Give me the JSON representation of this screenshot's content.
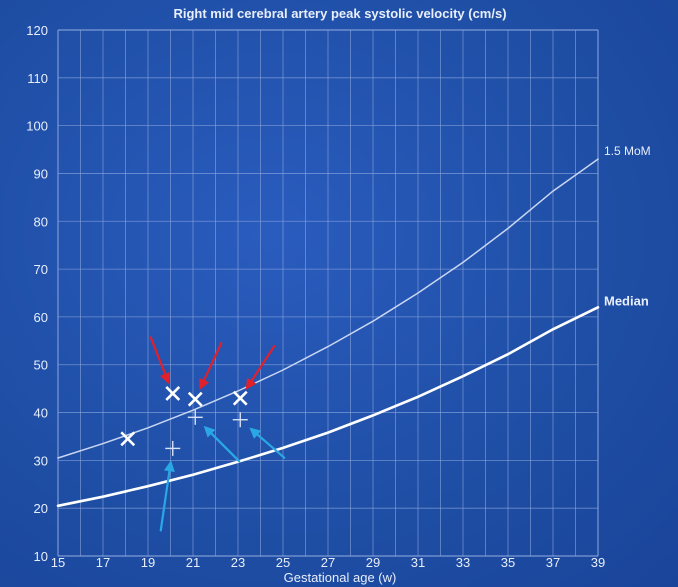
{
  "chart_data": {
    "type": "line",
    "title": "Right mid cerebral artery peak systolic velocity (cm/s)",
    "xlabel": "Gestational age (w)",
    "ylabel": "",
    "xlim": [
      15,
      39
    ],
    "ylim": [
      10,
      120
    ],
    "x_ticks": [
      15,
      17,
      19,
      21,
      23,
      25,
      27,
      29,
      31,
      33,
      35,
      37,
      39
    ],
    "y_ticks": [
      10,
      20,
      30,
      40,
      50,
      60,
      70,
      80,
      90,
      100,
      110,
      120
    ],
    "grid": true,
    "series": [
      {
        "name": "1.5 MoM",
        "style": "thin line",
        "color": "#c9d6f2",
        "x": [
          15,
          17,
          19,
          21,
          23,
          25,
          27,
          29,
          31,
          33,
          35,
          37,
          39
        ],
        "y": [
          30.5,
          33.5,
          36.8,
          40.5,
          44.5,
          48.9,
          53.8,
          59.1,
          65,
          71.4,
          78.5,
          86.3,
          93
        ]
      },
      {
        "name": "Median",
        "style": "thick line",
        "color": "#ffffff",
        "x": [
          15,
          17,
          19,
          21,
          23,
          25,
          27,
          29,
          31,
          33,
          35,
          37,
          39
        ],
        "y": [
          20.5,
          22.4,
          24.6,
          27,
          29.7,
          32.6,
          35.8,
          39.4,
          43.3,
          47.6,
          52.2,
          57.4,
          62
        ]
      }
    ],
    "points": [
      {
        "marker": "x",
        "x": 18.1,
        "y": 34.5
      },
      {
        "marker": "x",
        "x": 20.1,
        "y": 44
      },
      {
        "marker": "x",
        "x": 21.1,
        "y": 42.8
      },
      {
        "marker": "x",
        "x": 23.1,
        "y": 43
      },
      {
        "marker": "+",
        "x": 20.1,
        "y": 32.5
      },
      {
        "marker": "+",
        "x": 21.1,
        "y": 39
      },
      {
        "marker": "+",
        "x": 23.1,
        "y": 38.5
      }
    ],
    "arrows": [
      {
        "color": "#e0202a",
        "points_to": {
          "x": 20.1,
          "y": 44
        }
      },
      {
        "color": "#e0202a",
        "points_to": {
          "x": 21.1,
          "y": 42.8
        }
      },
      {
        "color": "#e0202a",
        "points_to": {
          "x": 23.1,
          "y": 43
        }
      },
      {
        "color": "#2aa8e6",
        "points_to": {
          "x": 20.1,
          "y": 32.5
        }
      },
      {
        "color": "#2aa8e6",
        "points_to": {
          "x": 21.1,
          "y": 39
        }
      },
      {
        "color": "#2aa8e6",
        "points_to": {
          "x": 23.1,
          "y": 38.5
        }
      }
    ],
    "colors": {
      "background": "#1f4fa8",
      "grid": "#8fa9de",
      "text": "#e8eefc"
    }
  }
}
